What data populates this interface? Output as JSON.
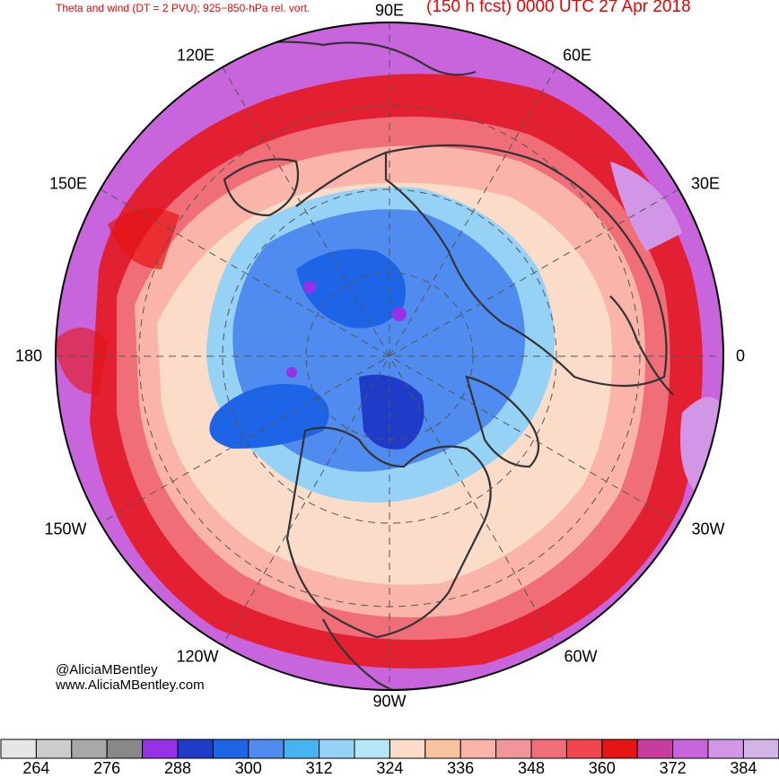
{
  "header": {
    "left_title": "Theta and wind (DT = 2 PVU); 925−850-hPa rel. vort.",
    "right_title": "(150 h fcst) 0000 UTC 27 Apr 2018"
  },
  "longitude_labels": {
    "e90": "90E",
    "e60": "60E",
    "e120": "120E",
    "e30": "30E",
    "e150": "150E",
    "zero": "0",
    "d180": "180",
    "w30": "30W",
    "w150": "150W",
    "w60": "60W",
    "w120": "120W",
    "w90": "90W"
  },
  "credit": {
    "handle": "@AliciaMBentley",
    "website": "www.AliciaMBentley.com"
  },
  "colorbar": {
    "colors": [
      "#e6e6e6",
      "#cccccc",
      "#a8a8a8",
      "#888888",
      "#9632e6",
      "#1e3cc8",
      "#1e64e6",
      "#508cf0",
      "#46b4f0",
      "#96d2f5",
      "#b4e6f5",
      "#fadcc8",
      "#fac3a0",
      "#fab4aa",
      "#f0969b",
      "#f06e78",
      "#f04650",
      "#e61414",
      "#c83ca0",
      "#c864dc",
      "#d296e6",
      "#d2b4e6"
    ],
    "tick_labels": [
      "264",
      "276",
      "288",
      "300",
      "312",
      "324",
      "336",
      "348",
      "360",
      "372",
      "384"
    ]
  }
}
